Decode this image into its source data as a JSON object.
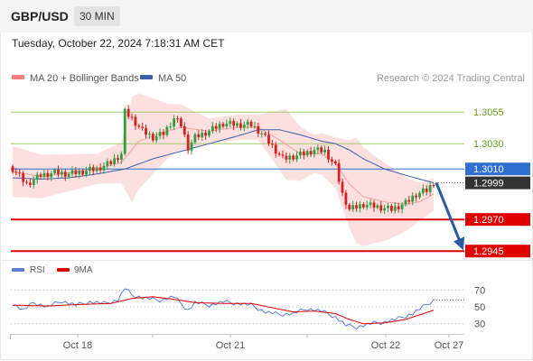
{
  "header": {
    "symbol": "GBP/USD",
    "timeframe": "30 MIN",
    "datetime": "Tuesday, October 22, 2024 7:18:31 AM CET"
  },
  "chart_data": [
    {
      "type": "candlestick",
      "legend": [
        {
          "name": "MA 20 + Bollinger Bands",
          "color": "#f08080"
        },
        {
          "name": "MA 50",
          "color": "#3a5fa8"
        }
      ],
      "credit": "Research © 2024 Trading Central",
      "ylim": [
        1.2938,
        1.3078
      ],
      "x_ticks": [
        "Oct 18",
        "Oct 21",
        "Oct 22",
        "Oct 27"
      ],
      "levels": [
        {
          "label": "1.3055",
          "value": 1.3055,
          "kind": "resistance",
          "color": "#a6cc6b",
          "label_color": "#6b9a1f"
        },
        {
          "label": "1.3030",
          "value": 1.303,
          "kind": "resistance",
          "color": "#a6cc6b",
          "label_color": "#6b9a1f"
        },
        {
          "label": "1.3010",
          "value": 1.301,
          "kind": "pivot",
          "color": "#2f6fd1",
          "label_color": "#ffffff",
          "label_bg": "#2f6fd1"
        },
        {
          "label": "1.2970",
          "value": 1.297,
          "kind": "support",
          "color": "#e00000",
          "label_color": "#ffffff",
          "label_bg": "#e00000"
        },
        {
          "label": "1.2945",
          "value": 1.2945,
          "kind": "support",
          "color": "#e00000",
          "label_color": "#ffffff",
          "label_bg": "#e00000"
        }
      ],
      "last_price": {
        "label": "1.2999",
        "value": 1.2999,
        "label_bg": "#333333"
      },
      "forecast_arrow": {
        "from": 1.2999,
        "to": 1.2947,
        "color": "#2c5aa0"
      },
      "close_path": [
        [
          0,
          1.301
        ],
        [
          4,
          1.2998
        ],
        [
          8,
          1.3005
        ],
        [
          12,
          1.3007
        ],
        [
          16,
          1.3006
        ],
        [
          20,
          1.3008
        ],
        [
          24,
          1.301
        ],
        [
          28,
          1.3015
        ],
        [
          31,
          1.3022
        ],
        [
          32,
          1.3055
        ],
        [
          34,
          1.305
        ],
        [
          37,
          1.304
        ],
        [
          40,
          1.3035
        ],
        [
          43,
          1.3038
        ],
        [
          46,
          1.305
        ],
        [
          48,
          1.3045
        ],
        [
          50,
          1.3027
        ],
        [
          52,
          1.3035
        ],
        [
          56,
          1.304
        ],
        [
          60,
          1.3046
        ],
        [
          64,
          1.3045
        ],
        [
          68,
          1.3045
        ],
        [
          71,
          1.3038
        ],
        [
          74,
          1.3028
        ],
        [
          77,
          1.3018
        ],
        [
          80,
          1.302
        ],
        [
          83,
          1.3022
        ],
        [
          86,
          1.3025
        ],
        [
          89,
          1.3024
        ],
        [
          92,
          1.3012
        ],
        [
          94,
          1.299
        ],
        [
          96,
          1.2978
        ],
        [
          100,
          1.2982
        ],
        [
          104,
          1.298
        ],
        [
          108,
          1.2978
        ],
        [
          112,
          1.2983
        ],
        [
          115,
          1.299
        ],
        [
          118,
          1.2993
        ],
        [
          120,
          1.2999
        ]
      ],
      "ma20_path": [
        [
          0,
          1.3008
        ],
        [
          8,
          1.3004
        ],
        [
          16,
          1.3007
        ],
        [
          24,
          1.301
        ],
        [
          31,
          1.3015
        ],
        [
          36,
          1.3032
        ],
        [
          42,
          1.3038
        ],
        [
          48,
          1.3043
        ],
        [
          56,
          1.304
        ],
        [
          64,
          1.3043
        ],
        [
          70,
          1.3043
        ],
        [
          76,
          1.3033
        ],
        [
          82,
          1.3022
        ],
        [
          88,
          1.3022
        ],
        [
          92,
          1.3015
        ],
        [
          96,
          1.2998
        ],
        [
          100,
          1.2988
        ],
        [
          106,
          1.2984
        ],
        [
          112,
          1.2982
        ],
        [
          116,
          1.2984
        ],
        [
          120,
          1.299
        ]
      ],
      "ma50_path": [
        [
          0,
          1.3003
        ],
        [
          8,
          1.3002
        ],
        [
          16,
          1.3003
        ],
        [
          24,
          1.3006
        ],
        [
          32,
          1.301
        ],
        [
          40,
          1.3018
        ],
        [
          48,
          1.3024
        ],
        [
          56,
          1.303
        ],
        [
          64,
          1.3036
        ],
        [
          70,
          1.3041
        ],
        [
          76,
          1.3041
        ],
        [
          82,
          1.3037
        ],
        [
          88,
          1.3032
        ],
        [
          92,
          1.303
        ],
        [
          96,
          1.3025
        ],
        [
          100,
          1.3018
        ],
        [
          106,
          1.301
        ],
        [
          112,
          1.3005
        ],
        [
          116,
          1.3002
        ],
        [
          120,
          1.2999
        ]
      ],
      "bb_width_path": [
        [
          0,
          0.002
        ],
        [
          24,
          0.0012
        ],
        [
          31,
          0.0016
        ],
        [
          34,
          0.0042
        ],
        [
          44,
          0.0022
        ],
        [
          56,
          0.001
        ],
        [
          70,
          0.001
        ],
        [
          78,
          0.0028
        ],
        [
          86,
          0.0015
        ],
        [
          92,
          0.002
        ],
        [
          98,
          0.0042
        ],
        [
          108,
          0.0028
        ],
        [
          116,
          0.0015
        ],
        [
          120,
          0.0013
        ]
      ]
    },
    {
      "type": "line",
      "legend": [
        {
          "name": "RSI",
          "color": "#5b7fd6"
        },
        {
          "name": "9MA",
          "color": "#e00000"
        }
      ],
      "ylim": [
        20,
        80
      ],
      "y_ticks": [
        70,
        50,
        30
      ],
      "rsi_path": [
        [
          0,
          54
        ],
        [
          3,
          46
        ],
        [
          6,
          55
        ],
        [
          10,
          50
        ],
        [
          14,
          57
        ],
        [
          18,
          52
        ],
        [
          22,
          56
        ],
        [
          26,
          54
        ],
        [
          30,
          58
        ],
        [
          32,
          72
        ],
        [
          34,
          64
        ],
        [
          38,
          60
        ],
        [
          42,
          58
        ],
        [
          46,
          62
        ],
        [
          50,
          46
        ],
        [
          52,
          55
        ],
        [
          56,
          52
        ],
        [
          60,
          56
        ],
        [
          64,
          54
        ],
        [
          68,
          52
        ],
        [
          72,
          44
        ],
        [
          76,
          41
        ],
        [
          80,
          42
        ],
        [
          84,
          48
        ],
        [
          88,
          45
        ],
        [
          92,
          38
        ],
        [
          95,
          28
        ],
        [
          98,
          26
        ],
        [
          102,
          30
        ],
        [
          106,
          32
        ],
        [
          110,
          36
        ],
        [
          114,
          42
        ],
        [
          117,
          50
        ],
        [
          120,
          58
        ]
      ],
      "ma9_path": [
        [
          0,
          52
        ],
        [
          10,
          51
        ],
        [
          20,
          53
        ],
        [
          28,
          54
        ],
        [
          34,
          60
        ],
        [
          40,
          62
        ],
        [
          46,
          59
        ],
        [
          52,
          55
        ],
        [
          60,
          54
        ],
        [
          68,
          54
        ],
        [
          74,
          49
        ],
        [
          80,
          44
        ],
        [
          86,
          45
        ],
        [
          92,
          42
        ],
        [
          96,
          35
        ],
        [
          100,
          30
        ],
        [
          106,
          31
        ],
        [
          112,
          35
        ],
        [
          120,
          46
        ]
      ]
    }
  ]
}
